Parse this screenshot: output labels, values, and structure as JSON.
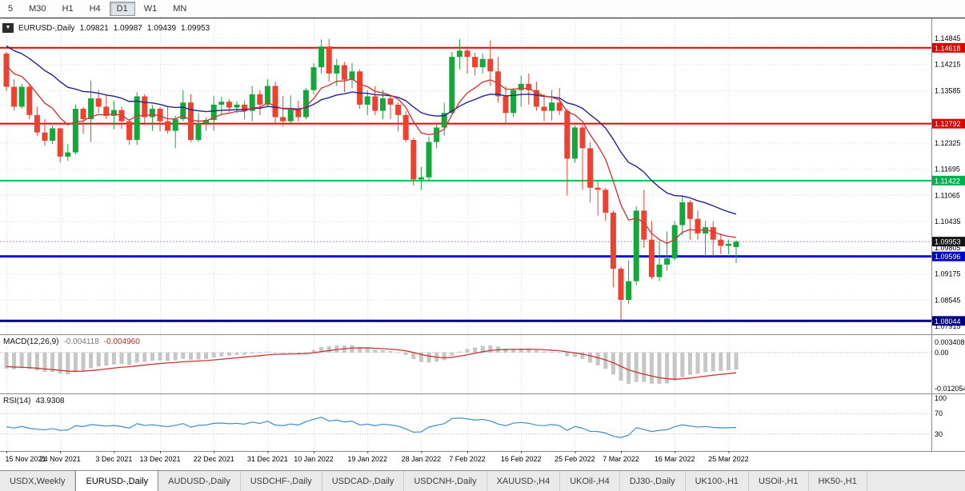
{
  "icons": {
    "collapse": "▼"
  },
  "toolbar": {
    "timeframes": [
      {
        "label": "5",
        "active": false
      },
      {
        "label": "M30",
        "active": false
      },
      {
        "label": "H1",
        "active": false
      },
      {
        "label": "H4",
        "active": false
      },
      {
        "label": "D1",
        "active": true
      },
      {
        "label": "W1",
        "active": false
      },
      {
        "label": "MN",
        "active": false
      }
    ]
  },
  "header": {
    "symbol": "EURUSD-,Daily",
    "open": "1.09821",
    "high": "1.09987",
    "low": "1.09439",
    "close": "1.09953"
  },
  "price_axis": {
    "ticks": [
      "1.14845",
      "1.14215",
      "1.13585",
      "1.12325",
      "1.11695",
      "1.11065",
      "1.10435",
      "1.09805",
      "1.09175",
      "1.08545",
      "1.07915"
    ],
    "badges": [
      {
        "label": "1.14618",
        "price": 1.14618,
        "color": "#e00000"
      },
      {
        "label": "1.12792",
        "price": 1.12792,
        "color": "#e00000"
      },
      {
        "label": "1.11422",
        "price": 1.11422,
        "color": "#00b050"
      },
      {
        "label": "1.09953",
        "price": 1.09953,
        "color": "#141414"
      },
      {
        "label": "1.09596",
        "price": 1.09596,
        "color": "#0000cd"
      },
      {
        "label": "1.08044",
        "price": 1.08044,
        "color": "#000080"
      }
    ]
  },
  "hlines": [
    {
      "price": 1.14618,
      "color": "#e60000",
      "width": 2
    },
    {
      "price": 1.12792,
      "color": "#e60000",
      "width": 2
    },
    {
      "price": 1.11422,
      "color": "#00c24e",
      "width": 2
    },
    {
      "price": 1.09596,
      "color": "#1414cc",
      "width": 3
    },
    {
      "price": 1.08044,
      "color": "#000080",
      "width": 3
    }
  ],
  "bid_line": {
    "price": 1.09953
  },
  "chart_data": {
    "type": "candlestick",
    "symbol": "EURUSD",
    "timeframe": "Daily",
    "up_color": "#14a83b",
    "down_color": "#ee4130",
    "ma_fast_color": "#cf3b3b",
    "ma_slow_color": "#23238e",
    "y_axis": {
      "min": 1.07915,
      "max": 1.14845,
      "tick_step": 0.0063
    },
    "x_labels": [
      {
        "i": 0,
        "label": "15 Nov 2021"
      },
      {
        "i": 7,
        "label": "24 Nov 2021"
      },
      {
        "i": 14,
        "label": "3 Dec 2021"
      },
      {
        "i": 20,
        "label": "13 Dec 2021"
      },
      {
        "i": 27,
        "label": "22 Dec 2021"
      },
      {
        "i": 34,
        "label": "31 Dec 2021"
      },
      {
        "i": 40,
        "label": "10 Jan 2022"
      },
      {
        "i": 47,
        "label": "19 Jan 2022"
      },
      {
        "i": 54,
        "label": "28 Jan 2022"
      },
      {
        "i": 60,
        "label": "7 Feb 2022"
      },
      {
        "i": 67,
        "label": "16 Feb 2022"
      },
      {
        "i": 74,
        "label": "25 Feb 2022"
      },
      {
        "i": 80,
        "label": "7 Mar 2022"
      },
      {
        "i": 87,
        "label": "16 Mar 2022"
      },
      {
        "i": 94,
        "label": "25 Mar 2022"
      }
    ],
    "candles": [
      [
        1.1448,
        1.1452,
        1.1358,
        1.1368
      ],
      [
        1.1368,
        1.1386,
        1.131,
        1.132
      ],
      [
        1.132,
        1.1375,
        1.1315,
        1.1368
      ],
      [
        1.1368,
        1.1374,
        1.129,
        1.13
      ],
      [
        1.13,
        1.132,
        1.125,
        1.1258
      ],
      [
        1.1258,
        1.129,
        1.1226,
        1.1238
      ],
      [
        1.1238,
        1.1275,
        1.123,
        1.1268
      ],
      [
        1.1268,
        1.127,
        1.1186,
        1.12
      ],
      [
        1.12,
        1.123,
        1.119,
        1.121
      ],
      [
        1.121,
        1.1325,
        1.1205,
        1.1315
      ],
      [
        1.1315,
        1.132,
        1.1255,
        1.129
      ],
      [
        1.129,
        1.1383,
        1.1235,
        1.134
      ],
      [
        1.134,
        1.136,
        1.1305,
        1.132
      ],
      [
        1.132,
        1.1348,
        1.129,
        1.1298
      ],
      [
        1.1298,
        1.1334,
        1.1266,
        1.1312
      ],
      [
        1.1312,
        1.132,
        1.1267,
        1.1285
      ],
      [
        1.1285,
        1.129,
        1.1228,
        1.124
      ],
      [
        1.124,
        1.1355,
        1.1228,
        1.1345
      ],
      [
        1.1345,
        1.135,
        1.128,
        1.1295
      ],
      [
        1.1295,
        1.1324,
        1.1262,
        1.1315
      ],
      [
        1.1315,
        1.132,
        1.126,
        1.1285
      ],
      [
        1.1285,
        1.132,
        1.1255,
        1.1262
      ],
      [
        1.1262,
        1.1298,
        1.122,
        1.129
      ],
      [
        1.129,
        1.136,
        1.1285,
        1.133
      ],
      [
        1.133,
        1.135,
        1.1235,
        1.124
      ],
      [
        1.124,
        1.1305,
        1.1235,
        1.128
      ],
      [
        1.128,
        1.1295,
        1.1262,
        1.1288
      ],
      [
        1.1288,
        1.1345,
        1.1262,
        1.1325
      ],
      [
        1.1325,
        1.1344,
        1.13,
        1.1332
      ],
      [
        1.1332,
        1.1338,
        1.1308,
        1.1318
      ],
      [
        1.1318,
        1.1333,
        1.1304,
        1.1325
      ],
      [
        1.1325,
        1.1335,
        1.129,
        1.131
      ],
      [
        1.131,
        1.137,
        1.1285,
        1.135
      ],
      [
        1.135,
        1.136,
        1.13,
        1.1325
      ],
      [
        1.1325,
        1.1386,
        1.132,
        1.137
      ],
      [
        1.137,
        1.138,
        1.128,
        1.1295
      ],
      [
        1.1295,
        1.1346,
        1.1272,
        1.1285
      ],
      [
        1.1285,
        1.1347,
        1.128,
        1.1315
      ],
      [
        1.1315,
        1.1335,
        1.1285,
        1.1295
      ],
      [
        1.1295,
        1.1365,
        1.129,
        1.136
      ],
      [
        1.136,
        1.1425,
        1.135,
        1.1415
      ],
      [
        1.1415,
        1.1482,
        1.14,
        1.1465
      ],
      [
        1.1465,
        1.1483,
        1.138,
        1.14
      ],
      [
        1.14,
        1.1435,
        1.137,
        1.142
      ],
      [
        1.142,
        1.1428,
        1.1355,
        1.1385
      ],
      [
        1.1385,
        1.1425,
        1.1365,
        1.1405
      ],
      [
        1.1405,
        1.141,
        1.1315,
        1.1325
      ],
      [
        1.1325,
        1.136,
        1.13,
        1.1345
      ],
      [
        1.1345,
        1.137,
        1.13,
        1.131
      ],
      [
        1.131,
        1.136,
        1.129,
        1.134
      ],
      [
        1.134,
        1.1348,
        1.129,
        1.1325
      ],
      [
        1.1325,
        1.133,
        1.126,
        1.13
      ],
      [
        1.13,
        1.131,
        1.1235,
        1.124
      ],
      [
        1.124,
        1.1245,
        1.113,
        1.1145
      ],
      [
        1.1145,
        1.1175,
        1.112,
        1.115
      ],
      [
        1.115,
        1.1248,
        1.114,
        1.1235
      ],
      [
        1.1235,
        1.128,
        1.122,
        1.127
      ],
      [
        1.127,
        1.133,
        1.125,
        1.1305
      ],
      [
        1.1305,
        1.1452,
        1.13,
        1.144
      ],
      [
        1.144,
        1.1483,
        1.141,
        1.1455
      ],
      [
        1.1455,
        1.1465,
        1.14,
        1.144
      ],
      [
        1.144,
        1.145,
        1.1395,
        1.1415
      ],
      [
        1.1415,
        1.1448,
        1.14,
        1.1435
      ],
      [
        1.1435,
        1.148,
        1.137,
        1.1405
      ],
      [
        1.1405,
        1.144,
        1.133,
        1.1345
      ],
      [
        1.1345,
        1.137,
        1.128,
        1.1305
      ],
      [
        1.1305,
        1.1365,
        1.1295,
        1.136
      ],
      [
        1.136,
        1.1395,
        1.132,
        1.1375
      ],
      [
        1.1375,
        1.14,
        1.1325,
        1.136
      ],
      [
        1.136,
        1.138,
        1.131,
        1.132
      ],
      [
        1.132,
        1.135,
        1.1285,
        1.131
      ],
      [
        1.131,
        1.136,
        1.1287,
        1.133
      ],
      [
        1.133,
        1.1365,
        1.13,
        1.131
      ],
      [
        1.131,
        1.1315,
        1.1106,
        1.1195
      ],
      [
        1.1195,
        1.1275,
        1.1185,
        1.127
      ],
      [
        1.127,
        1.128,
        1.112,
        1.122
      ],
      [
        1.122,
        1.1235,
        1.109,
        1.1125
      ],
      [
        1.1125,
        1.114,
        1.1058,
        1.112
      ],
      [
        1.112,
        1.1125,
        1.1045,
        1.1065
      ],
      [
        1.1065,
        1.107,
        1.0885,
        1.093
      ],
      [
        1.093,
        1.0935,
        1.0806,
        1.0855
      ],
      [
        1.0855,
        1.095,
        1.0845,
        1.09
      ],
      [
        1.09,
        1.108,
        1.089,
        1.107
      ],
      [
        1.107,
        1.112,
        1.098,
        1.1
      ],
      [
        1.1,
        1.1045,
        1.0905,
        1.091
      ],
      [
        1.091,
        1.0995,
        1.09,
        1.094
      ],
      [
        1.094,
        1.102,
        1.0925,
        1.0955
      ],
      [
        1.0955,
        1.1045,
        1.095,
        1.1035
      ],
      [
        1.1035,
        1.1105,
        1.101,
        1.109
      ],
      [
        1.109,
        1.1095,
        1.1,
        1.105
      ],
      [
        1.105,
        1.107,
        1.1,
        1.1015
      ],
      [
        1.1015,
        1.1045,
        1.096,
        1.103
      ],
      [
        1.103,
        1.1045,
        1.096,
        1.1
      ],
      [
        1.1,
        1.1015,
        1.0965,
        1.0985
      ],
      [
        1.0985,
        1.1,
        1.0965,
        1.099
      ],
      [
        1.09821,
        1.09987,
        1.09439,
        1.09953
      ]
    ]
  },
  "macd_panel": {
    "label": "MACD(12,26,9)",
    "value_main": "-0.004118",
    "value_signal": "-0.004960",
    "axis_labels": [
      "0.003408",
      "0.00",
      "-0.012054"
    ],
    "axis_values": [
      0.003408,
      0,
      -0.012054
    ],
    "hist_color": "#c6c6c6",
    "signal_color": "#cc3333"
  },
  "rsi_panel": {
    "label": "RSI(14)",
    "value": "43.9308",
    "axis_labels": [
      "100",
      "70",
      "30"
    ],
    "axis_values": [
      100,
      70,
      30
    ],
    "levels": [
      70,
      30
    ],
    "line_color": "#3f8cce"
  },
  "tabs": [
    {
      "label": "USDX,Weekly",
      "active": false
    },
    {
      "label": "EURUSD-,Daily",
      "active": true
    },
    {
      "label": "AUDUSD-,Daily",
      "active": false
    },
    {
      "label": "USDCHF-,Daily",
      "active": false
    },
    {
      "label": "USDCAD-,Daily",
      "active": false
    },
    {
      "label": "USDCNH-,Daily",
      "active": false
    },
    {
      "label": "XAUUSD-,H4",
      "active": false
    },
    {
      "label": "UKOil-,H4",
      "active": false
    },
    {
      "label": "DJ30-,Daily",
      "active": false
    },
    {
      "label": "UK100-,H1",
      "active": false
    },
    {
      "label": "USOil-,H1",
      "active": false
    },
    {
      "label": "HK50-,H1",
      "active": false
    }
  ]
}
